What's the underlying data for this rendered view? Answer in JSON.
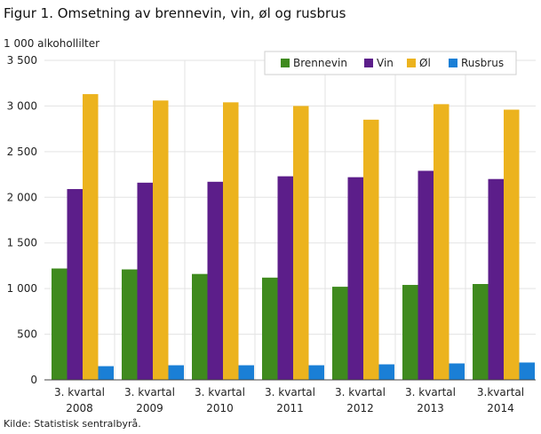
{
  "title": "Figur 1. Omsetning av brennevin, vin, øl og rusbrus",
  "unit_label": "1 000 alkohollilter",
  "source": "Kilde: Statistisk sentralbyrå.",
  "chart_data": {
    "type": "bar",
    "title": "Figur 1. Omsetning av brennevin, vin, øl og rusbrus",
    "ylabel": "1 000 alkohollilter",
    "xlabel": "",
    "ylim": [
      0,
      3500
    ],
    "yticks": [
      0,
      500,
      1000,
      1500,
      2000,
      2500,
      3000,
      3500
    ],
    "ytick_labels": [
      "0",
      "500",
      "1 000",
      "1 500",
      "2 000",
      "2 500",
      "3 000",
      "3 500"
    ],
    "grid": "vertical separators between categories",
    "legend_position": "top-right",
    "categories": [
      [
        "3. kvartal",
        "2008"
      ],
      [
        "3. kvartal",
        "2009"
      ],
      [
        "3. kvartal",
        "2010"
      ],
      [
        "3. kvartal",
        "2011"
      ],
      [
        "3. kvartal",
        "2012"
      ],
      [
        "3. kvartal",
        "2013"
      ],
      [
        "3.kvartal",
        "2014"
      ]
    ],
    "series": [
      {
        "name": "Brennevin",
        "color": "#3f8a1e",
        "values": [
          1220,
          1210,
          1160,
          1120,
          1020,
          1040,
          1050
        ]
      },
      {
        "name": "Vin",
        "color": "#5c1e8a",
        "values": [
          2090,
          2160,
          2170,
          2230,
          2220,
          2290,
          2200
        ]
      },
      {
        "name": "Øl",
        "color": "#ecb31e",
        "values": [
          3130,
          3060,
          3040,
          3000,
          2850,
          3020,
          2960
        ]
      },
      {
        "name": "Rusbrus",
        "color": "#1a7fd6",
        "values": [
          150,
          160,
          160,
          160,
          170,
          180,
          190
        ]
      }
    ]
  }
}
